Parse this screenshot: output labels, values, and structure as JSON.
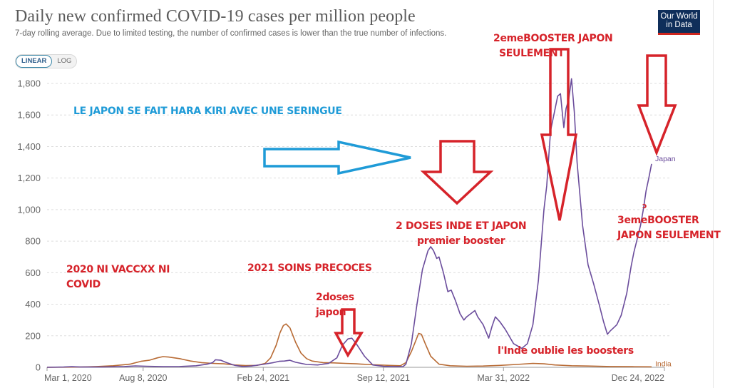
{
  "header": {
    "title": "Daily new confirmed COVID-19 cases per million people",
    "subtitle": "7-day rolling average. Due to limited testing, the number of confirmed cases is lower than the true number of infections.",
    "logo_line1": "Our World",
    "logo_line2": "in Data",
    "scale_options": [
      "LINEAR",
      "LOG"
    ],
    "scale_selected": "LINEAR"
  },
  "colors": {
    "japan": "#6b4d9c",
    "india": "#b86b35",
    "annotation_red": "#d6232a",
    "annotation_blue": "#1f9bd7",
    "logo_bg": "#0f2e5a",
    "logo_bar": "#ce261e"
  },
  "annotations": [
    {
      "id": "hara-kiri",
      "text": "LE JAPON SE FAIT HARA KIRI  AVEC UNE SERINGUE",
      "color": "blue"
    },
    {
      "id": "2020",
      "lines": [
        "2020 NI VACCXX  NI",
        "COVID"
      ]
    },
    {
      "id": "2021",
      "text": "2021 SOINS PRECOCES"
    },
    {
      "id": "2doses",
      "lines": [
        "2doses",
        "japon"
      ]
    },
    {
      "id": "2doses-inde",
      "lines": [
        "2 DOSES INDE ET JAPON",
        "premier booster"
      ]
    },
    {
      "id": "2eme-booster",
      "lines": [
        "2emeBOOSTER JAPON",
        "SEULEMENT"
      ]
    },
    {
      "id": "3eme-booster",
      "lines": [
        "3emeBOOSTER",
        "JAPON SEULEMENT"
      ]
    },
    {
      "id": "inde-oublie",
      "text": "l'Inde oublie les boosters"
    },
    {
      "id": "stray-mark",
      "text": "ↄ"
    }
  ],
  "chart_data": {
    "type": "line",
    "title": "Daily new confirmed COVID-19 cases per million people",
    "subtitle": "7-day rolling average. Due to limited testing, the number of confirmed cases is lower than the true number of infections.",
    "xlabel": "",
    "ylabel": "",
    "x_unit": "days since Mar 1, 2020",
    "x_start_date": "Mar 1, 2020",
    "xlim": [
      0,
      1028
    ],
    "ylim": [
      0,
      1800
    ],
    "grid": true,
    "yticks": [
      0,
      200,
      400,
      600,
      800,
      1000,
      1200,
      1400,
      1600,
      1800
    ],
    "ytick_labels": [
      "0",
      "200",
      "400",
      "600",
      "800",
      "1,000",
      "1,200",
      "1,400",
      "1,600",
      "1,800"
    ],
    "xticks": [
      0,
      160,
      360,
      560,
      760,
      1028
    ],
    "xtick_labels": [
      "Mar 1, 2020",
      "Aug 8, 2020",
      "Feb 24, 2021",
      "Sep 12, 2021",
      "Mar 31, 2022",
      "Dec 24, 2022"
    ],
    "legend": "inline-right",
    "series": [
      {
        "name": "Japan",
        "color_key": "japan",
        "points": [
          [
            0,
            0
          ],
          [
            30,
            2
          ],
          [
            45,
            4
          ],
          [
            60,
            2
          ],
          [
            100,
            2
          ],
          [
            140,
            5
          ],
          [
            160,
            9
          ],
          [
            180,
            7
          ],
          [
            210,
            4
          ],
          [
            240,
            5
          ],
          [
            270,
            10
          ],
          [
            290,
            20
          ],
          [
            300,
            30
          ],
          [
            305,
            48
          ],
          [
            315,
            45
          ],
          [
            325,
            30
          ],
          [
            340,
            12
          ],
          [
            355,
            5
          ],
          [
            370,
            8
          ],
          [
            390,
            18
          ],
          [
            410,
            30
          ],
          [
            420,
            38
          ],
          [
            430,
            40
          ],
          [
            440,
            45
          ],
          [
            450,
            32
          ],
          [
            470,
            18
          ],
          [
            490,
            15
          ],
          [
            510,
            25
          ],
          [
            525,
            60
          ],
          [
            535,
            140
          ],
          [
            545,
            180
          ],
          [
            552,
            185
          ],
          [
            560,
            150
          ],
          [
            575,
            70
          ],
          [
            590,
            15
          ],
          [
            610,
            6
          ],
          [
            630,
            4
          ],
          [
            645,
            5
          ],
          [
            650,
            20
          ],
          [
            660,
            150
          ],
          [
            670,
            400
          ],
          [
            680,
            620
          ],
          [
            690,
            740
          ],
          [
            695,
            765
          ],
          [
            700,
            740
          ],
          [
            706,
            690
          ],
          [
            710,
            700
          ],
          [
            718,
            600
          ],
          [
            726,
            480
          ],
          [
            732,
            490
          ],
          [
            740,
            420
          ],
          [
            748,
            340
          ],
          [
            755,
            300
          ],
          [
            760,
            320
          ],
          [
            775,
            360
          ],
          [
            780,
            320
          ],
          [
            790,
            270
          ],
          [
            800,
            185
          ],
          [
            806,
            260
          ],
          [
            812,
            320
          ],
          [
            820,
            290
          ],
          [
            830,
            240
          ],
          [
            845,
            150
          ],
          [
            860,
            120
          ],
          [
            870,
            150
          ],
          [
            880,
            270
          ],
          [
            890,
            550
          ],
          [
            900,
            1000
          ],
          [
            905,
            1150
          ],
          [
            908,
            1300
          ],
          [
            912,
            1500
          ],
          [
            918,
            1600
          ],
          [
            925,
            1720
          ],
          [
            930,
            1735
          ],
          [
            934,
            1590
          ],
          [
            936,
            1520
          ],
          [
            940,
            1640
          ],
          [
            945,
            1700
          ],
          [
            950,
            1830
          ],
          [
            955,
            1620
          ],
          [
            960,
            1300
          ],
          [
            970,
            900
          ],
          [
            980,
            650
          ],
          [
            990,
            530
          ],
          [
            1000,
            400
          ],
          [
            1008,
            290
          ],
          [
            1015,
            210
          ],
          [
            1020,
            230
          ],
          [
            1026,
            250
          ],
          [
            1032,
            270
          ],
          [
            1040,
            330
          ],
          [
            1050,
            470
          ],
          [
            1058,
            640
          ],
          [
            1063,
            730
          ],
          [
            1068,
            800
          ],
          [
            1075,
            900
          ],
          [
            1080,
            1000
          ],
          [
            1085,
            1120
          ],
          [
            1090,
            1200
          ],
          [
            1095,
            1290
          ]
        ]
      },
      {
        "name": "India",
        "color_key": "india",
        "points": [
          [
            0,
            0
          ],
          [
            30,
            1
          ],
          [
            60,
            2
          ],
          [
            90,
            5
          ],
          [
            120,
            10
          ],
          [
            150,
            20
          ],
          [
            170,
            38
          ],
          [
            185,
            45
          ],
          [
            200,
            60
          ],
          [
            210,
            68
          ],
          [
            220,
            65
          ],
          [
            240,
            55
          ],
          [
            260,
            40
          ],
          [
            280,
            30
          ],
          [
            300,
            25
          ],
          [
            320,
            22
          ],
          [
            340,
            15
          ],
          [
            360,
            11
          ],
          [
            380,
            12
          ],
          [
            395,
            25
          ],
          [
            405,
            60
          ],
          [
            415,
            140
          ],
          [
            422,
            220
          ],
          [
            428,
            265
          ],
          [
            433,
            275
          ],
          [
            440,
            250
          ],
          [
            450,
            160
          ],
          [
            460,
            90
          ],
          [
            470,
            55
          ],
          [
            480,
            40
          ],
          [
            500,
            30
          ],
          [
            520,
            28
          ],
          [
            540,
            25
          ],
          [
            560,
            22
          ],
          [
            580,
            18
          ],
          [
            600,
            15
          ],
          [
            620,
            12
          ],
          [
            640,
            10
          ],
          [
            650,
            30
          ],
          [
            660,
            100
          ],
          [
            668,
            170
          ],
          [
            673,
            215
          ],
          [
            678,
            210
          ],
          [
            685,
            150
          ],
          [
            695,
            70
          ],
          [
            710,
            20
          ],
          [
            730,
            10
          ],
          [
            760,
            7
          ],
          [
            790,
            8
          ],
          [
            820,
            12
          ],
          [
            850,
            18
          ],
          [
            880,
            25
          ],
          [
            900,
            22
          ],
          [
            920,
            15
          ],
          [
            950,
            10
          ],
          [
            980,
            8
          ],
          [
            1020,
            5
          ],
          [
            1060,
            4
          ],
          [
            1095,
            3
          ]
        ]
      }
    ]
  }
}
